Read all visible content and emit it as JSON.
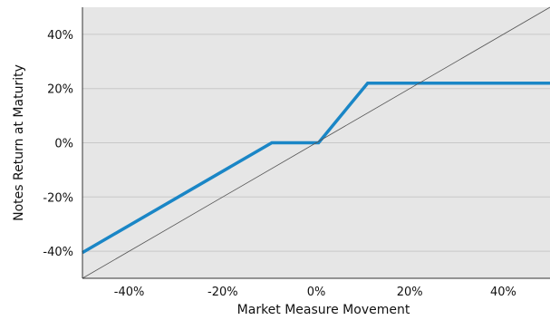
{
  "chart_data": {
    "type": "line",
    "title": "",
    "xlabel": "Market Measure Movement",
    "ylabel": "Notes Return at Maturity",
    "xlim": [
      -50,
      50
    ],
    "ylim": [
      -50,
      50
    ],
    "x_ticks": [
      -40,
      -20,
      0,
      20,
      40
    ],
    "y_ticks": [
      -40,
      -20,
      0,
      20,
      40
    ],
    "x_tick_labels": [
      "-40%",
      "-20%",
      "0%",
      "20%",
      "40%"
    ],
    "y_tick_labels": [
      "-40%",
      "-20%",
      "0%",
      "20%",
      "40%"
    ],
    "grid": "horizontal",
    "colors": {
      "background": "#e6e6e6",
      "grid": "#c8c8c8",
      "series": "#1a86c6",
      "reference": "#555555"
    },
    "series": [
      {
        "style": "solid-thick",
        "x": [
          -50,
          -9.5,
          0.5,
          11,
          50
        ],
        "y": [
          -40.5,
          0,
          0,
          22,
          22
        ]
      },
      {
        "style": "thin-reference",
        "x": [
          -50,
          50
        ],
        "y": [
          -50,
          50
        ]
      }
    ]
  }
}
